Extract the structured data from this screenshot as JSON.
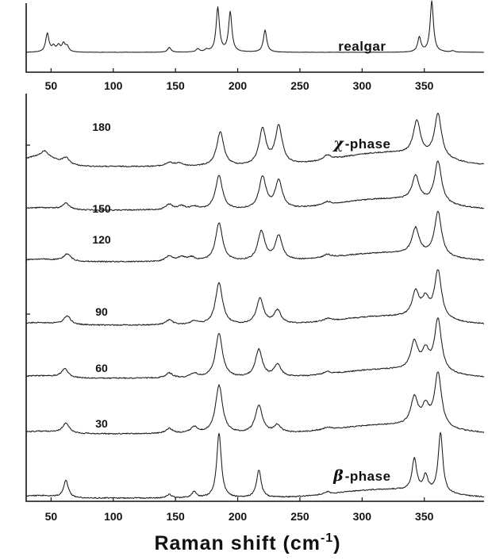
{
  "chart_data": [
    {
      "type": "line",
      "panel": "top",
      "series": [
        {
          "name": "realgar",
          "peaks": [
            {
              "x": 47,
              "h": 0.42
            },
            {
              "x": 52,
              "h": 0.12
            },
            {
              "x": 56,
              "h": 0.14
            },
            {
              "x": 60,
              "h": 0.18
            },
            {
              "x": 63,
              "h": 0.12
            },
            {
              "x": 145,
              "h": 0.11
            },
            {
              "x": 168,
              "h": 0.07
            },
            {
              "x": 175,
              "h": 0.05
            },
            {
              "x": 184,
              "h": 1.0
            },
            {
              "x": 194,
              "h": 0.9
            },
            {
              "x": 222,
              "h": 0.5
            },
            {
              "x": 346,
              "h": 0.33
            },
            {
              "x": 356,
              "h": 1.15
            },
            {
              "x": 373,
              "h": 0.03
            }
          ]
        }
      ],
      "xlim": [
        30,
        398
      ],
      "xticks": [
        50,
        100,
        150,
        200,
        250,
        300,
        350
      ],
      "grid": false
    },
    {
      "type": "line",
      "panel": "bottom",
      "stacked": true,
      "xlabel": "Raman shift (cm",
      "xlabel_superscript": "-1",
      "xlabel_suffix": ")",
      "xlim": [
        30,
        398
      ],
      "xticks": [
        50,
        100,
        150,
        200,
        250,
        300,
        350
      ],
      "grid": false,
      "series": [
        {
          "name": "180",
          "phase": "χ-phase",
          "peaks": [
            {
              "x": 45,
              "h": 0.1
            },
            {
              "x": 62,
              "h": 0.1
            },
            {
              "x": 145,
              "h": 0.06
            },
            {
              "x": 153,
              "h": 0.05
            },
            {
              "x": 186,
              "h": 0.55
            },
            {
              "x": 220,
              "h": 0.58
            },
            {
              "x": 233,
              "h": 0.62
            },
            {
              "x": 272,
              "h": 0.08
            },
            {
              "x": 344,
              "h": 0.55
            },
            {
              "x": 361,
              "h": 0.72
            }
          ]
        },
        {
          "name": "150",
          "peaks": [
            {
              "x": 62,
              "h": 0.1
            },
            {
              "x": 145,
              "h": 0.09
            },
            {
              "x": 155,
              "h": 0.06
            },
            {
              "x": 165,
              "h": 0.05
            },
            {
              "x": 185,
              "h": 0.55
            },
            {
              "x": 220,
              "h": 0.52
            },
            {
              "x": 233,
              "h": 0.45
            },
            {
              "x": 272,
              "h": 0.05
            },
            {
              "x": 343,
              "h": 0.4
            },
            {
              "x": 361,
              "h": 0.68
            }
          ]
        },
        {
          "name": "120",
          "peaks": [
            {
              "x": 63,
              "h": 0.12
            },
            {
              "x": 145,
              "h": 0.09
            },
            {
              "x": 155,
              "h": 0.07
            },
            {
              "x": 163,
              "h": 0.06
            },
            {
              "x": 185,
              "h": 0.62
            },
            {
              "x": 219,
              "h": 0.48
            },
            {
              "x": 233,
              "h": 0.4
            },
            {
              "x": 272,
              "h": 0.05
            },
            {
              "x": 343,
              "h": 0.42
            },
            {
              "x": 361,
              "h": 0.72
            }
          ]
        },
        {
          "name": "90",
          "peaks": [
            {
              "x": 63,
              "h": 0.14
            },
            {
              "x": 145,
              "h": 0.08
            },
            {
              "x": 165,
              "h": 0.06
            },
            {
              "x": 185,
              "h": 0.68
            },
            {
              "x": 218,
              "h": 0.42
            },
            {
              "x": 232,
              "h": 0.22
            },
            {
              "x": 272,
              "h": 0.04
            },
            {
              "x": 343,
              "h": 0.4
            },
            {
              "x": 351,
              "h": 0.28
            },
            {
              "x": 361,
              "h": 0.78
            }
          ]
        },
        {
          "name": "60",
          "peaks": [
            {
              "x": 61,
              "h": 0.14
            },
            {
              "x": 145,
              "h": 0.08
            },
            {
              "x": 165,
              "h": 0.07
            },
            {
              "x": 185,
              "h": 0.72
            },
            {
              "x": 217,
              "h": 0.45
            },
            {
              "x": 232,
              "h": 0.2
            },
            {
              "x": 272,
              "h": 0.04
            },
            {
              "x": 342,
              "h": 0.45
            },
            {
              "x": 351,
              "h": 0.3
            },
            {
              "x": 361,
              "h": 0.85
            }
          ]
        },
        {
          "name": "30",
          "peaks": [
            {
              "x": 62,
              "h": 0.16
            },
            {
              "x": 145,
              "h": 0.08
            },
            {
              "x": 165,
              "h": 0.1
            },
            {
              "x": 185,
              "h": 0.78
            },
            {
              "x": 217,
              "h": 0.45
            },
            {
              "x": 232,
              "h": 0.12
            },
            {
              "x": 272,
              "h": 0.04
            },
            {
              "x": 342,
              "h": 0.45
            },
            {
              "x": 351,
              "h": 0.3
            },
            {
              "x": 361,
              "h": 0.88
            }
          ]
        },
        {
          "name": "",
          "phase": "β-phase",
          "peaks": [
            {
              "x": 62,
              "h": 0.28
            },
            {
              "x": 145,
              "h": 0.06
            },
            {
              "x": 165,
              "h": 0.1
            },
            {
              "x": 185,
              "h": 1.05
            },
            {
              "x": 217,
              "h": 0.45
            },
            {
              "x": 272,
              "h": 0.04
            },
            {
              "x": 342,
              "h": 0.52
            },
            {
              "x": 351,
              "h": 0.25
            },
            {
              "x": 363,
              "h": 0.98
            }
          ]
        }
      ]
    }
  ]
}
